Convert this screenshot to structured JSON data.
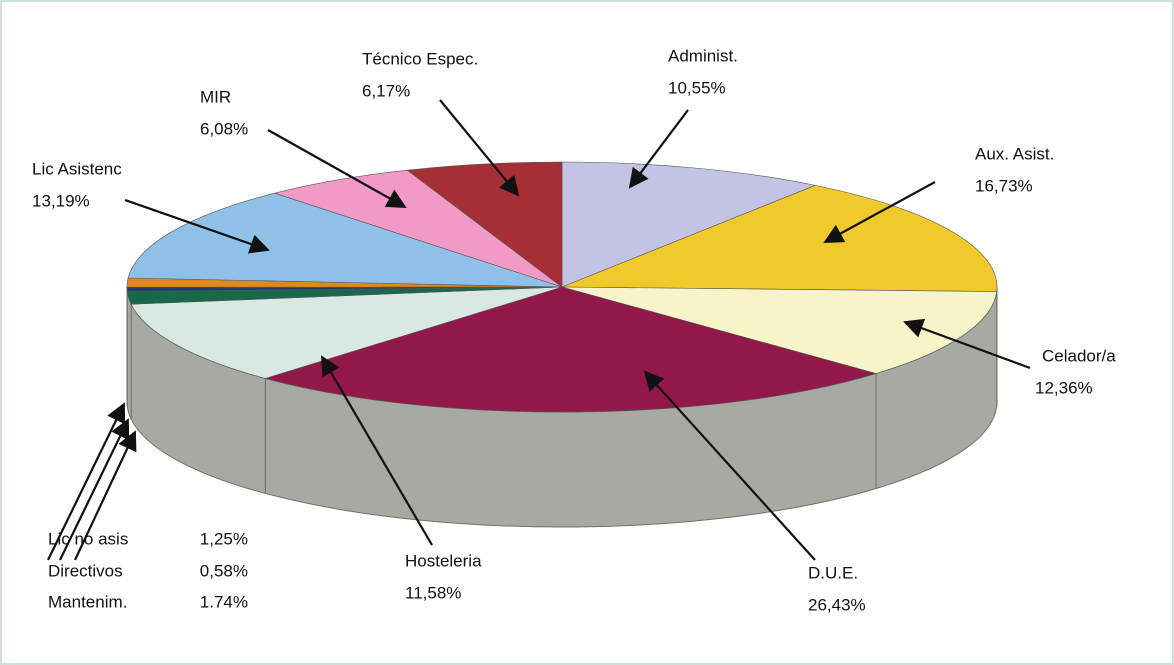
{
  "chart_data": {
    "type": "pie",
    "categories": [
      "Administ.",
      "Aux. Asist.",
      "Celador/a",
      "D.U.E.",
      "Hosteleria",
      "Mantenim.",
      "Directivos",
      "Lic no asis",
      "Lic Asistenc",
      "MIR",
      "Técnico Espec."
    ],
    "values": [
      10.55,
      16.73,
      12.36,
      26.43,
      11.58,
      1.74,
      0.58,
      1.25,
      13.19,
      6.08,
      6.17
    ],
    "value_labels": [
      "10,55%",
      "16,73%",
      "12,36%",
      "26,43%",
      "11,58%",
      "1.74%",
      "0,58%",
      "1,25%",
      "13,19%",
      "6,08%",
      "6,17%"
    ],
    "colors": [
      "#c3c3e6",
      "#f0c92a",
      "#f6f4c8",
      "#921849",
      "#d9e8e2",
      "#17694a",
      "#1d3d6b",
      "#e08a1e",
      "#8fc0e8",
      "#f19ac6",
      "#a52f35"
    ]
  }
}
